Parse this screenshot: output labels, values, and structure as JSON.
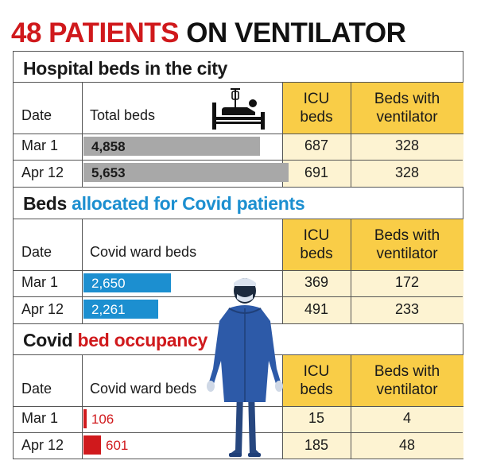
{
  "headline": {
    "part1": "48 PATIENTS",
    "part2": " ON VENTILATOR"
  },
  "colors": {
    "red": "#d0191c",
    "blue": "#1c8fd0",
    "gray": "#a8a8a8",
    "yellow": "#f9cd47",
    "cream": "#fdf3d2",
    "figure": "#2d5aa8"
  },
  "icons": {
    "bed": "hospital-bed-icon",
    "doctor": "health-worker-ppe-icon"
  },
  "chart_data": [
    {
      "type": "table",
      "title": "Hospital beds in the city",
      "columns": [
        "Date",
        "Total beds",
        "ICU beds",
        "Beds with ventilator"
      ],
      "rows": [
        {
          "date": "Mar 1",
          "bar_value": 4858,
          "bar_label": "4,858",
          "icu": "687",
          "vent": "328"
        },
        {
          "date": "Apr 12",
          "bar_value": 5653,
          "bar_label": "5,653",
          "icu": "691",
          "vent": "328"
        }
      ]
    },
    {
      "type": "table",
      "title_part1": "Beds ",
      "title_part2": "allocated for Covid patients",
      "columns": [
        "Date",
        "Covid ward beds",
        "ICU beds",
        "Beds with ventilator"
      ],
      "rows": [
        {
          "date": "Mar 1",
          "bar_value": 2650,
          "bar_label": "2,650",
          "icu": "369",
          "vent": "172"
        },
        {
          "date": "Apr 12",
          "bar_value": 2261,
          "bar_label": "2,261",
          "icu": "491",
          "vent": "233"
        }
      ]
    },
    {
      "type": "table",
      "title_part1": "Covid ",
      "title_part2": "bed occupancy",
      "columns": [
        "Date",
        "Covid ward beds",
        "ICU beds",
        "Beds with ventilator"
      ],
      "rows": [
        {
          "date": "Mar 1",
          "bar_value": 106,
          "bar_label": "106",
          "icu": "15",
          "vent": "4"
        },
        {
          "date": "Apr 12",
          "bar_value": 601,
          "bar_label": "601",
          "icu": "185",
          "vent": "48"
        }
      ]
    }
  ]
}
